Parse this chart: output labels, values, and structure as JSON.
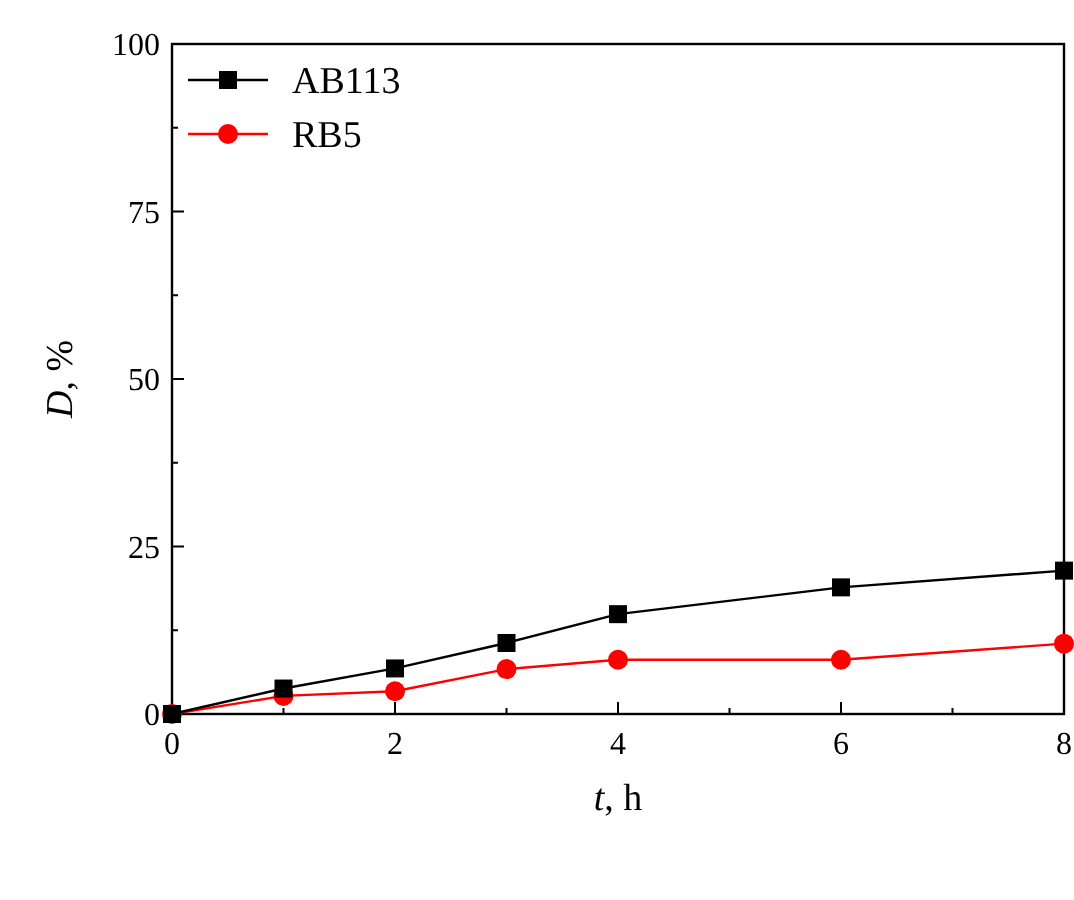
{
  "chart_data": {
    "type": "line",
    "xlabel": "t, h",
    "ylabel": "D, %",
    "x": [
      0,
      1,
      2,
      3,
      4,
      6,
      8
    ],
    "xlim": [
      0,
      8
    ],
    "xticks": [
      0,
      2,
      4,
      6,
      8
    ],
    "ylim": [
      0,
      100
    ],
    "yticks": [
      0,
      25,
      50,
      75,
      100
    ],
    "grid": false,
    "legend": "top left",
    "series": [
      {
        "name": "AB113",
        "color": "#000000",
        "marker": "square",
        "values": [
          0,
          3.8,
          6.8,
          10.6,
          14.9,
          18.9,
          21.4
        ]
      },
      {
        "name": "RB5",
        "color": "#ff0000",
        "marker": "circle",
        "values": [
          0,
          2.7,
          3.4,
          6.7,
          8.1,
          8.1,
          10.5
        ]
      }
    ]
  }
}
